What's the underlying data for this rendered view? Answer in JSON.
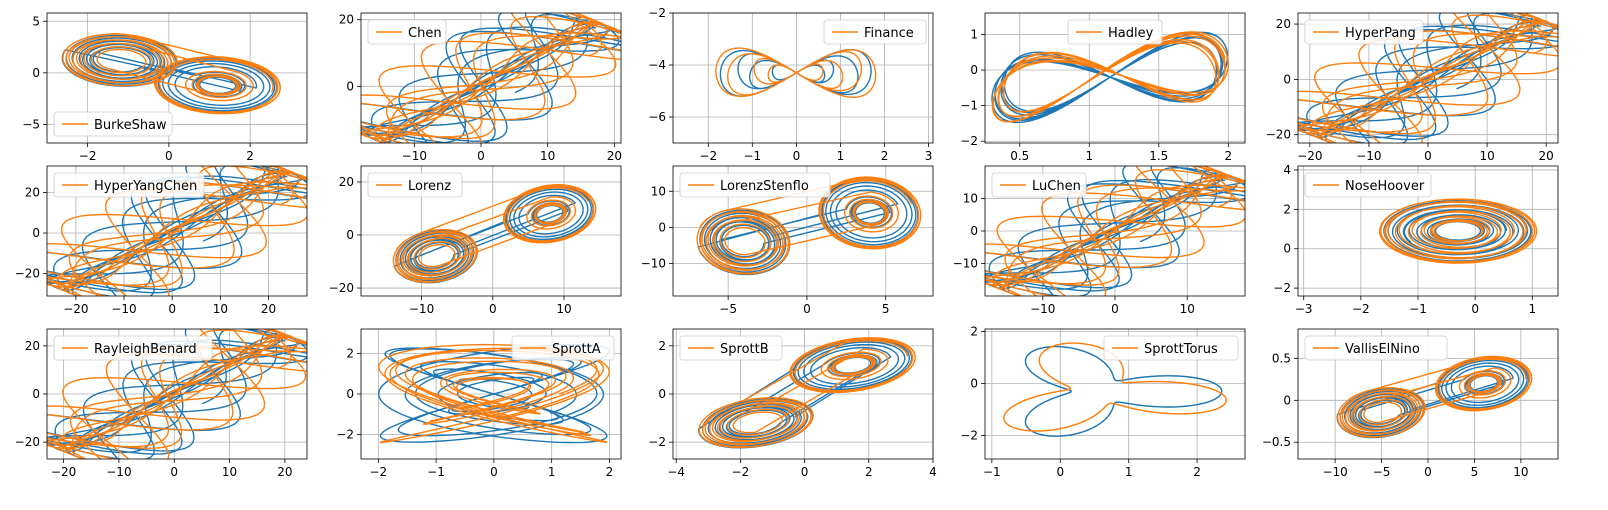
{
  "colors": {
    "series_blue": "#1f77b4",
    "series_orange": "#ff7f0e",
    "grid": "#b0b0b0"
  },
  "chart_data": [
    {
      "type": "line",
      "title": "BurkeShaw",
      "legend": "BurkeShaw",
      "legend_loc": "lower-left",
      "xlim": [
        -3,
        3.4
      ],
      "ylim": [
        -6.8,
        5.8
      ],
      "xticks": [
        -2,
        0,
        2
      ],
      "yticks": [
        -5,
        0,
        5
      ],
      "grid": true,
      "shape": "twolobe",
      "c1": [
        -1.2,
        1.2
      ],
      "c2": [
        1.2,
        -1.2
      ],
      "r1": [
        1.5,
        2.5
      ],
      "r2": [
        1.5,
        2.5
      ],
      "tilt": -0.3
    },
    {
      "type": "line",
      "title": "Chen",
      "legend": "Chen",
      "legend_loc": "upper-left",
      "xlim": [
        -18,
        21
      ],
      "ylim": [
        -17,
        22
      ],
      "xticks": [
        -10,
        0,
        10,
        20
      ],
      "yticks": [
        0,
        20
      ],
      "grid": true,
      "shape": "band",
      "a": [
        -16,
        -16
      ],
      "b": [
        18,
        19
      ]
    },
    {
      "type": "line",
      "title": "Finance",
      "legend": "Finance",
      "legend_loc": "upper-right",
      "xlim": [
        -2.8,
        3.1
      ],
      "ylim": [
        -7,
        -2
      ],
      "xticks": [
        -2,
        -1,
        0,
        1,
        2,
        3
      ],
      "yticks": [
        -6,
        -4,
        -2
      ],
      "grid": true,
      "shape": "figure8",
      "cx": 0,
      "cy": -4.3,
      "sx": 1.1,
      "sy": 1.5
    },
    {
      "type": "line",
      "title": "Hadley",
      "legend": "Hadley",
      "legend_loc": "upper-center",
      "xlim": [
        0.25,
        2.12
      ],
      "ylim": [
        -2.05,
        1.6
      ],
      "xticks": [
        0.5,
        1,
        1.5,
        2
      ],
      "yticks": [
        -2,
        -1,
        0,
        1
      ],
      "grid": true,
      "shape": "hadley"
    },
    {
      "type": "line",
      "title": "HyperPang",
      "legend": "HyperPang",
      "legend_loc": "upper-left",
      "xlim": [
        -22,
        22
      ],
      "ylim": [
        -23,
        24
      ],
      "xticks": [
        -20,
        -10,
        0,
        10,
        20
      ],
      "yticks": [
        -20,
        0,
        20
      ],
      "grid": true,
      "shape": "band",
      "a": [
        -20,
        -20
      ],
      "b": [
        20,
        21
      ]
    },
    {
      "type": "line",
      "title": "HyperYangChen",
      "legend": "HyperYangChen",
      "legend_loc": "upper-left",
      "xlim": [
        -26,
        28
      ],
      "ylim": [
        -31,
        33
      ],
      "xticks": [
        -20,
        -10,
        0,
        10,
        20
      ],
      "yticks": [
        -20,
        0,
        20
      ],
      "grid": true,
      "shape": "band",
      "a": [
        -24,
        -27
      ],
      "b": [
        25,
        30
      ]
    },
    {
      "type": "line",
      "title": "Lorenz",
      "legend": "Lorenz",
      "legend_loc": "upper-left",
      "xlim": [
        -18.5,
        18
      ],
      "ylim": [
        -23,
        26
      ],
      "xticks": [
        -10,
        0,
        10
      ],
      "yticks": [
        -20,
        0,
        20
      ],
      "grid": true,
      "shape": "twolobe",
      "c1": [
        -8,
        -8
      ],
      "c2": [
        8,
        8
      ],
      "r1": [
        7,
        9
      ],
      "r2": [
        7,
        9
      ],
      "tilt": 0.6
    },
    {
      "type": "line",
      "title": "LorenzStenflo",
      "legend": "LorenzStenflo",
      "legend_loc": "upper-left",
      "xlim": [
        -8.5,
        8
      ],
      "ylim": [
        -19,
        17
      ],
      "xticks": [
        -5,
        0,
        5
      ],
      "yticks": [
        -10,
        0,
        10
      ],
      "grid": true,
      "shape": "twolobe",
      "c1": [
        -4,
        -4
      ],
      "c2": [
        4,
        4
      ],
      "r1": [
        3,
        9
      ],
      "r2": [
        3,
        9
      ],
      "tilt": 0.3
    },
    {
      "type": "line",
      "title": "LuChen",
      "legend": "LuChen",
      "legend_loc": "upper-left",
      "xlim": [
        -18,
        18
      ],
      "ylim": [
        -20,
        20
      ],
      "xticks": [
        -10,
        0,
        10
      ],
      "yticks": [
        -10,
        0,
        10
      ],
      "grid": true,
      "shape": "band",
      "a": [
        -17,
        -17
      ],
      "b": [
        16,
        17
      ]
    },
    {
      "type": "line",
      "title": "NoseHoover",
      "legend": "NoseHoover",
      "legend_loc": "upper-left",
      "xlim": [
        -3.1,
        1.45
      ],
      "ylim": [
        -2.4,
        4.2
      ],
      "xticks": [
        -3,
        -2,
        -1,
        0,
        1
      ],
      "yticks": [
        -2,
        0,
        2,
        4
      ],
      "grid": true,
      "shape": "loop",
      "cx": -0.3,
      "cy": 0.9,
      "sx": 1.3,
      "sy": 2.2
    },
    {
      "type": "line",
      "title": "RayleighBenard",
      "legend": "RayleighBenard",
      "legend_loc": "upper-left",
      "xlim": [
        -23,
        24
      ],
      "ylim": [
        -27,
        27
      ],
      "xticks": [
        -20,
        -10,
        0,
        10,
        20
      ],
      "yticks": [
        -20,
        0,
        20
      ],
      "grid": true,
      "shape": "band",
      "a": [
        -21,
        -23
      ],
      "b": [
        21,
        24
      ]
    },
    {
      "type": "line",
      "title": "SprottA",
      "legend": "SprottA",
      "legend_loc": "upper-right",
      "xlim": [
        -2.3,
        2.2
      ],
      "ylim": [
        -3.2,
        3.2
      ],
      "xticks": [
        -2,
        -1,
        0,
        1,
        2
      ],
      "yticks": [
        -2,
        0,
        2
      ],
      "grid": true,
      "shape": "lissajous",
      "cx": 0,
      "cy": 0,
      "sx": 2,
      "sy": 2.7
    },
    {
      "type": "line",
      "title": "SprottB",
      "legend": "SprottB",
      "legend_loc": "upper-left",
      "xlim": [
        -4.1,
        4
      ],
      "ylim": [
        -2.7,
        2.7
      ],
      "xticks": [
        -4,
        -2,
        0,
        2,
        4
      ],
      "yticks": [
        -2,
        0,
        2
      ],
      "grid": true,
      "shape": "twolobe",
      "c1": [
        -1.5,
        -1.2
      ],
      "c2": [
        1.5,
        1.2
      ],
      "r1": [
        2,
        1
      ],
      "r2": [
        2,
        1
      ],
      "tilt": 0.4
    },
    {
      "type": "line",
      "title": "SprottTorus",
      "legend": "SprottTorus",
      "legend_loc": "upper-right",
      "xlim": [
        -1.1,
        2.7
      ],
      "ylim": [
        -2.9,
        2.1
      ],
      "xticks": [
        -1,
        0,
        1,
        2
      ],
      "yticks": [
        -2,
        0,
        2
      ],
      "grid": true,
      "shape": "torus",
      "cx": 0.6,
      "cy": -0.3
    },
    {
      "type": "line",
      "title": "VallisElNino",
      "legend": "VallisElNino",
      "legend_loc": "upper-left",
      "xlim": [
        -14,
        14
      ],
      "ylim": [
        -0.7,
        0.85
      ],
      "xticks": [
        -10,
        -5,
        0,
        5,
        10
      ],
      "yticks": [
        -0.5,
        0,
        0.5
      ],
      "grid": true,
      "shape": "twolobe",
      "c1": [
        -5,
        -0.15
      ],
      "c2": [
        6,
        0.2
      ],
      "r1": [
        5,
        0.3
      ],
      "r2": [
        5,
        0.3
      ],
      "tilt": 0.2
    }
  ]
}
